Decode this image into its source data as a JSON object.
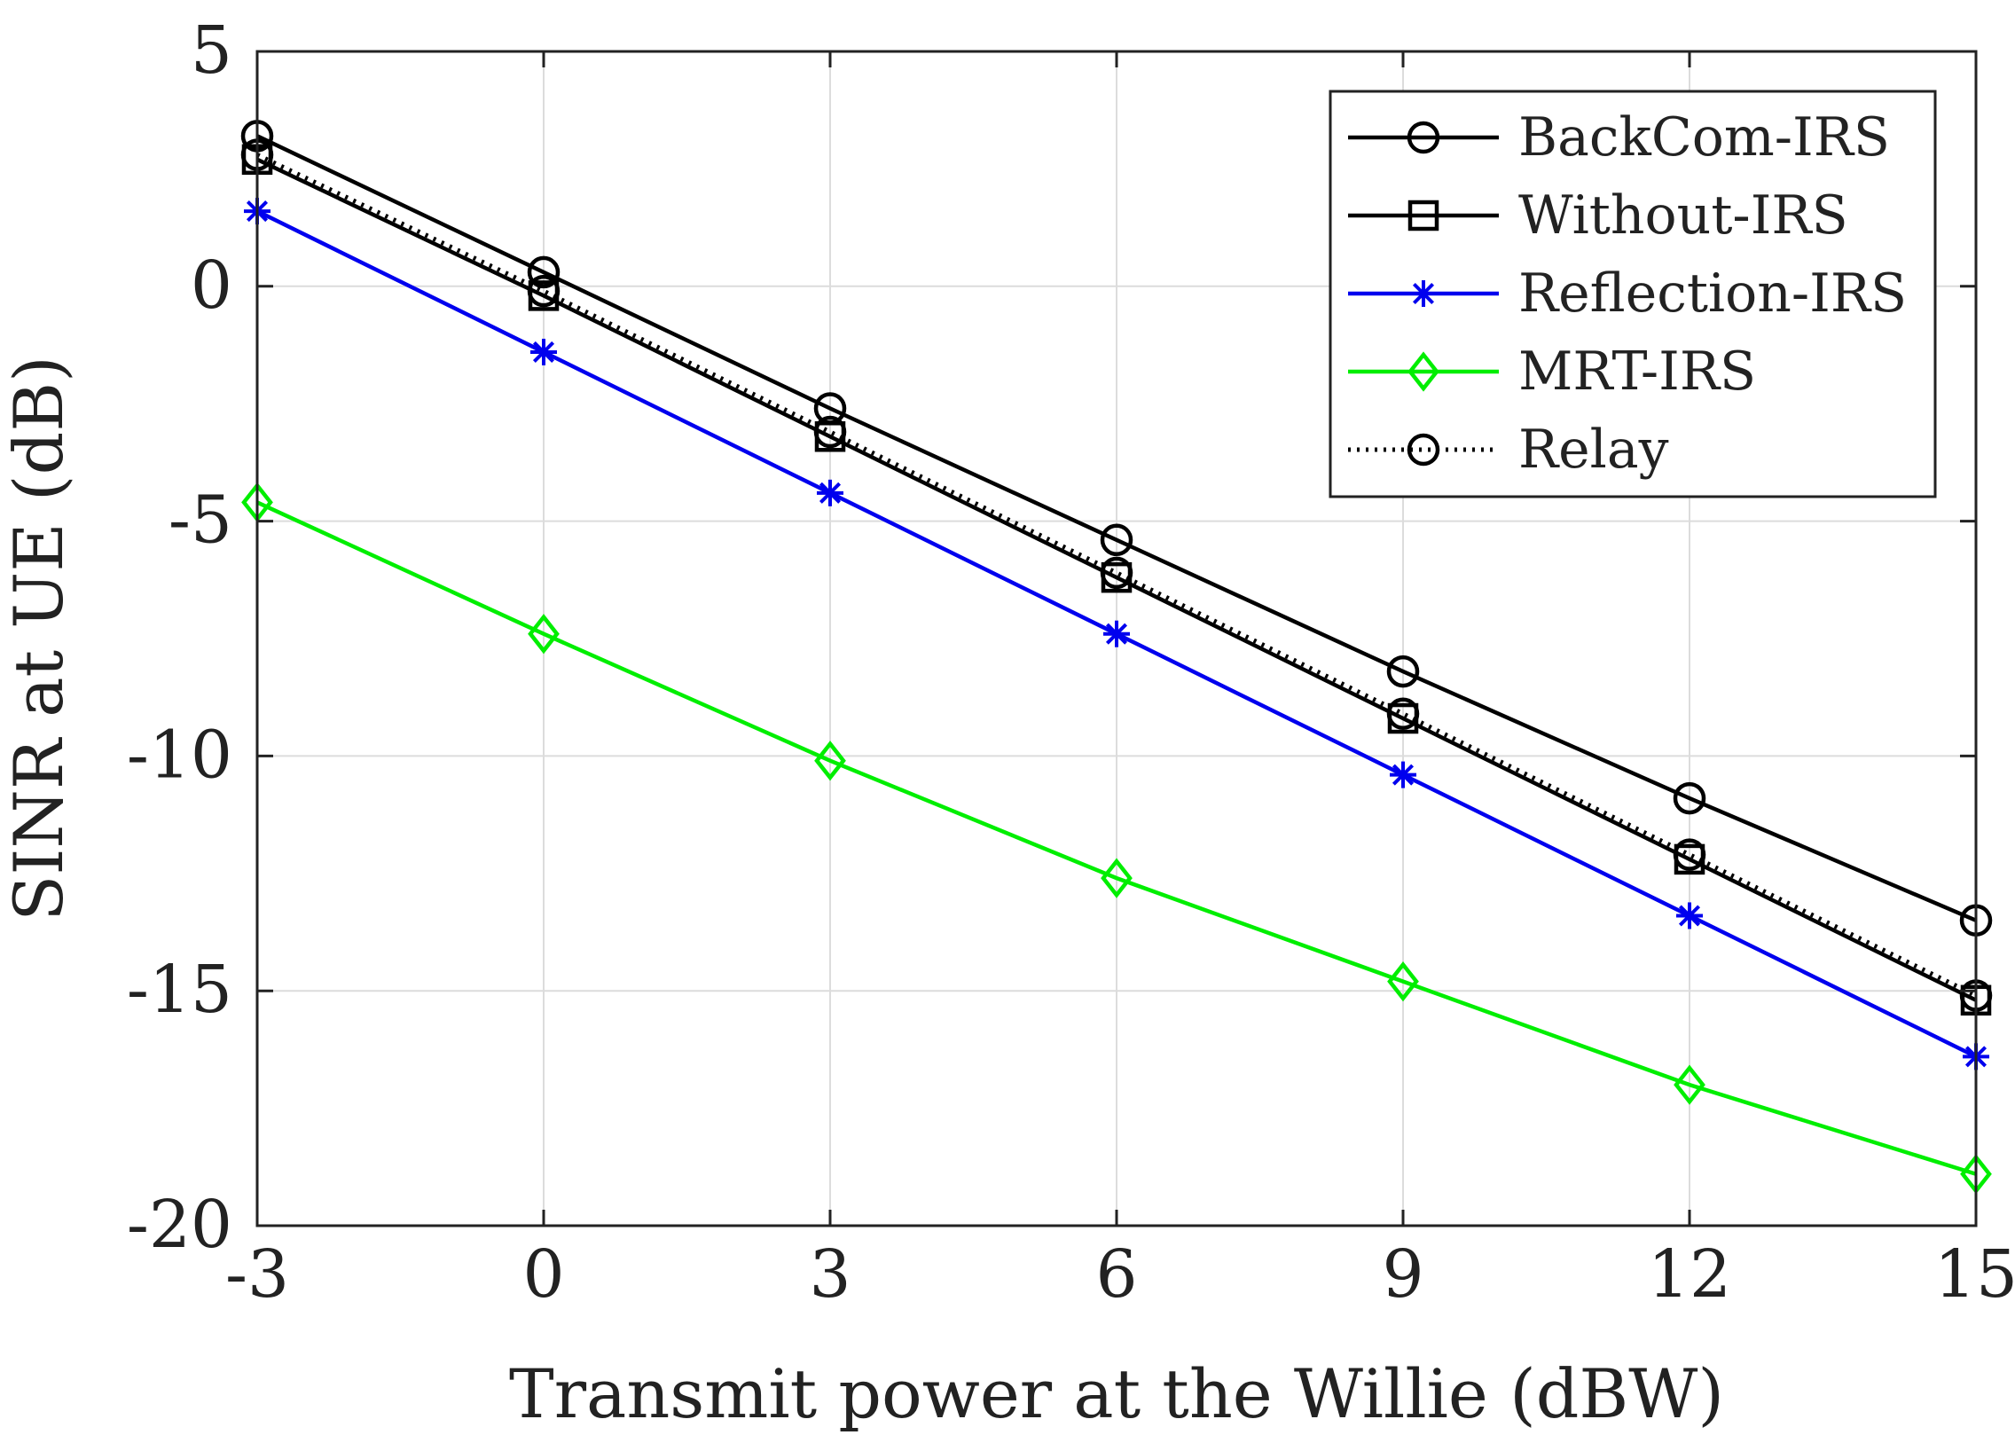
{
  "chart_data": {
    "type": "line",
    "title": "",
    "xlabel": "Transmit power at the Willie (dBW)",
    "ylabel": "SINR at UE (dB)",
    "x": [
      -3,
      0,
      3,
      6,
      9,
      12,
      15
    ],
    "xlim": [
      -3,
      15
    ],
    "ylim": [
      -20,
      5
    ],
    "xticks": [
      "-3",
      "0",
      "3",
      "6",
      "9",
      "12",
      "15"
    ],
    "yticks": [
      "5",
      "0",
      "-5",
      "-10",
      "-15",
      "-20"
    ],
    "grid": true,
    "legend_position": "top-right",
    "series": [
      {
        "name": "BackCom-IRS",
        "values": [
          3.2,
          0.3,
          -2.6,
          -5.4,
          -8.2,
          -10.9,
          -13.5
        ],
        "color": "#000000",
        "marker": "circle",
        "line": "solid"
      },
      {
        "name": "Without-IRS",
        "values": [
          2.7,
          -0.2,
          -3.2,
          -6.2,
          -9.2,
          -12.2,
          -15.2
        ],
        "color": "#000000",
        "marker": "square",
        "line": "solid"
      },
      {
        "name": "Reflection-IRS",
        "values": [
          1.6,
          -1.4,
          -4.4,
          -7.4,
          -10.4,
          -13.4,
          -16.4
        ],
        "color": "#0000ee",
        "marker": "asterisk",
        "line": "solid"
      },
      {
        "name": "MRT-IRS",
        "values": [
          -4.6,
          -7.4,
          -10.1,
          -12.6,
          -14.8,
          -17.0,
          -18.9
        ],
        "color": "#00ee00",
        "marker": "diamond",
        "line": "solid"
      },
      {
        "name": "Relay",
        "values": [
          2.8,
          -0.1,
          -3.1,
          -6.1,
          -9.1,
          -12.1,
          -15.1
        ],
        "color": "#000000",
        "marker": "circle",
        "line": "dotted"
      }
    ]
  }
}
